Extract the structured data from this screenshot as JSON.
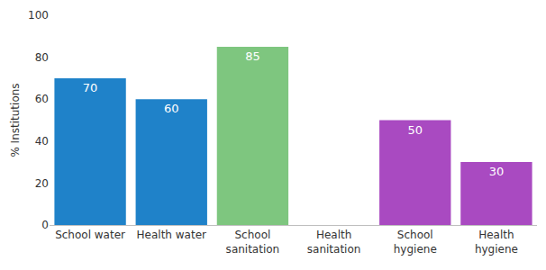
{
  "chart_data": {
    "type": "bar",
    "categories": [
      "School water",
      "Health water",
      "School sanitation",
      "Health sanitation",
      "School hygiene",
      "Health hygiene"
    ],
    "values": [
      70,
      60,
      85,
      null,
      50,
      30
    ],
    "colors": [
      "#1f82c9",
      "#1f82c9",
      "#7ec67f",
      "#7ec67f",
      "#a94ac1",
      "#a94ac1"
    ],
    "y_label": "% Institutions",
    "ylim": [
      0,
      100
    ],
    "yticks": [
      0,
      20,
      40,
      60,
      80,
      100
    ],
    "grid": false,
    "data_labels": true
  }
}
